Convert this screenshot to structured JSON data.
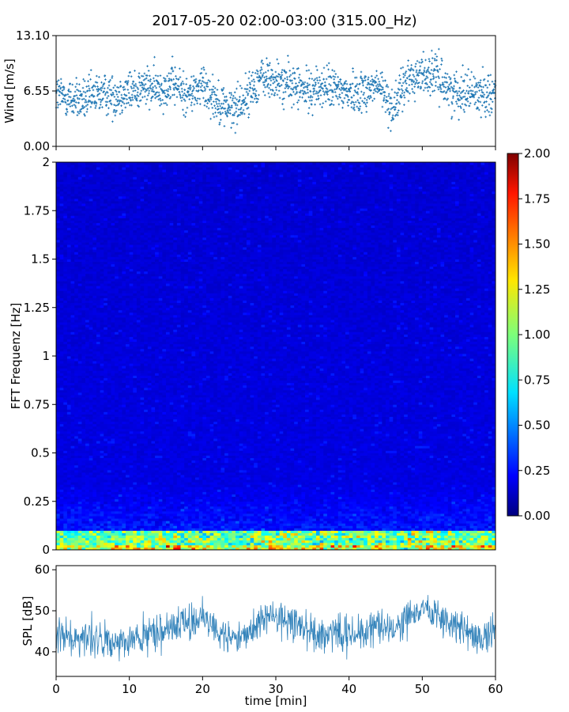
{
  "title": "2017-05-20 02:00-03:00 (315.00_Hz)",
  "chart_data": [
    {
      "type": "scatter",
      "panel": "wind",
      "ylabel": "Wind [m/s]",
      "ylim": [
        0,
        13.1
      ],
      "yticks": [
        "0.00",
        "6.55",
        "13.10"
      ],
      "xlim": [
        0,
        60
      ],
      "series": [
        {
          "x_min": [
            0,
            2,
            4,
            6,
            8,
            10,
            12,
            14,
            16,
            18,
            20,
            22,
            24,
            26,
            28,
            30,
            32,
            34,
            36,
            38,
            40,
            42,
            44,
            46,
            48,
            50,
            52,
            54,
            56,
            58,
            60
          ],
          "y_mean": [
            6.2,
            5.6,
            5.4,
            6.3,
            6.0,
            6.5,
            7.0,
            6.8,
            7.4,
            6.0,
            7.2,
            5.4,
            4.3,
            5.8,
            8.2,
            7.6,
            7.4,
            6.5,
            7.0,
            6.8,
            6.4,
            6.6,
            7.2,
            4.5,
            7.8,
            8.6,
            8.4,
            6.4,
            6.6,
            6.2,
            6.5
          ]
        }
      ]
    },
    {
      "type": "heatmap",
      "panel": "spectrogram",
      "ylabel": "FFT Frequenz [Hz]",
      "ylim": [
        0,
        2
      ],
      "yticks": [
        "0",
        "0.25",
        "0.5",
        "0.75",
        "1",
        "1.25",
        "1.5",
        "1.75",
        "2"
      ],
      "xlim": [
        0,
        60
      ],
      "colorbar": {
        "range": [
          0,
          2
        ],
        "ticks": [
          "0.00",
          "0.25",
          "0.50",
          "0.75",
          "1.00",
          "1.25",
          "1.50",
          "1.75",
          "2.00"
        ],
        "colormap": "jet"
      }
    },
    {
      "type": "line",
      "panel": "spl",
      "ylabel": "SPL [dB]",
      "xlabel": "time [min]",
      "ylim": [
        34,
        61
      ],
      "yticks": [
        "40",
        "50",
        "60"
      ],
      "xlim": [
        0,
        60
      ],
      "xticks": [
        "0",
        "10",
        "20",
        "30",
        "40",
        "50",
        "60"
      ],
      "series": [
        {
          "x_min": [
            0,
            2,
            4,
            6,
            8,
            10,
            12,
            14,
            16,
            18,
            20,
            22,
            24,
            26,
            28,
            30,
            32,
            34,
            36,
            38,
            40,
            42,
            44,
            46,
            48,
            50,
            52,
            54,
            56,
            58,
            60
          ],
          "y_mean": [
            45,
            43,
            44,
            43,
            41,
            43,
            44,
            45,
            46,
            47,
            48,
            45,
            43,
            44,
            48,
            49,
            47,
            45,
            44,
            45,
            44,
            45,
            46,
            45,
            48,
            50,
            49,
            46,
            45,
            43,
            45
          ]
        }
      ]
    }
  ],
  "colors": {
    "series": "#1f77b4"
  }
}
